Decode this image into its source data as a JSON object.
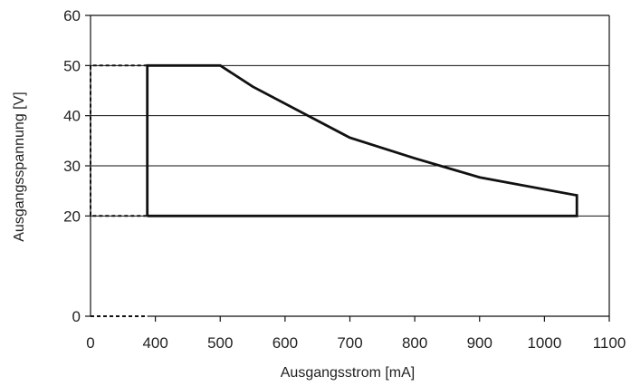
{
  "chart_data": {
    "type": "line",
    "xlabel": "Ausgangsstrom [mA]",
    "ylabel": "Ausgangsspannung [V]",
    "xlim": [
      0,
      1100
    ],
    "ylim": [
      0,
      60
    ],
    "x_ticks": [
      {
        "value": 0,
        "label": "0"
      },
      {
        "value": 400,
        "label": "400"
      },
      {
        "value": 500,
        "label": "500"
      },
      {
        "value": 600,
        "label": "600"
      },
      {
        "value": 700,
        "label": "700"
      },
      {
        "value": 800,
        "label": "800"
      },
      {
        "value": 900,
        "label": "900"
      },
      {
        "value": 1000,
        "label": "1000"
      },
      {
        "value": 1100,
        "label": "1100"
      }
    ],
    "y_ticks": [
      {
        "value": 0,
        "label": "0"
      },
      {
        "value": 20,
        "label": "20"
      },
      {
        "value": 30,
        "label": "30"
      },
      {
        "value": 40,
        "label": "40"
      },
      {
        "value": 50,
        "label": "50"
      },
      {
        "value": 60,
        "label": "60"
      }
    ],
    "grid": "horizontal",
    "series": [
      {
        "style": "solid",
        "color": "#111111",
        "points": [
          {
            "x": 350,
            "y": 20
          },
          {
            "x": 350,
            "y": 50
          },
          {
            "x": 500,
            "y": 50
          },
          {
            "x": 550,
            "y": 45.8
          },
          {
            "x": 700,
            "y": 35.6
          },
          {
            "x": 800,
            "y": 31.5
          },
          {
            "x": 900,
            "y": 27.7
          },
          {
            "x": 1050,
            "y": 24.1
          },
          {
            "x": 1050,
            "y": 20
          },
          {
            "x": 350,
            "y": 20
          }
        ]
      },
      {
        "style": "dashed",
        "color": "#111111",
        "points": [
          {
            "x": 350,
            "y": 50
          },
          {
            "x": 0,
            "y": 50
          },
          {
            "x": 0,
            "y": 20
          },
          {
            "x": 350,
            "y": 20
          }
        ]
      },
      {
        "style": "dashed",
        "color": "#111111",
        "points": [
          {
            "x": 0,
            "y": 0
          },
          {
            "x": 350,
            "y": 0
          }
        ]
      }
    ]
  }
}
